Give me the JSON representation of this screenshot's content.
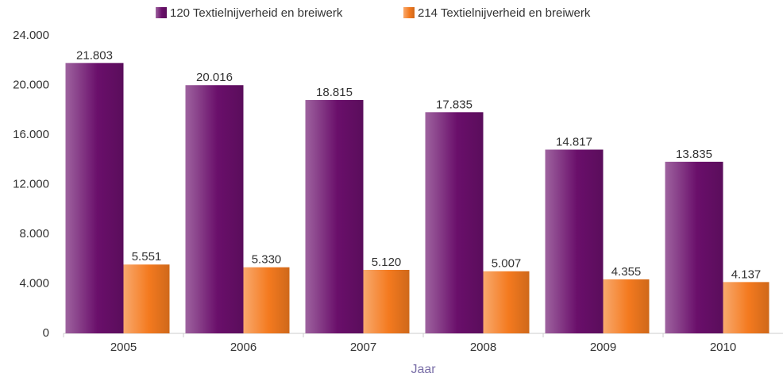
{
  "chart_data": {
    "type": "bar",
    "x_label": "Jaar",
    "categories": [
      "2005",
      "2006",
      "2007",
      "2008",
      "2009",
      "2010"
    ],
    "series": [
      {
        "name": "120 Textielnijverheid en breiwerk",
        "color": "#6a0f6b",
        "values": [
          21803,
          20016,
          18815,
          17835,
          14817,
          13835
        ],
        "value_labels": [
          "21.803",
          "20.016",
          "18.815",
          "17.835",
          "14.817",
          "13.835"
        ]
      },
      {
        "name": "214 Textielnijverheid en breiwerk",
        "color": "#f47a1f",
        "values": [
          5551,
          5330,
          5120,
          5007,
          4355,
          4137
        ],
        "value_labels": [
          "5.551",
          "5.330",
          "5.120",
          "5.007",
          "4.355",
          "4.137"
        ]
      }
    ],
    "ylim": [
      0,
      24000
    ],
    "yticks": [
      0,
      {
        "value": 4000,
        "label": "4.000"
      },
      {
        "value": 8000,
        "label": "8.000"
      },
      {
        "value": 12000,
        "label": "12.000"
      },
      {
        "value": 16000,
        "label": "16.000"
      },
      {
        "value": 20000,
        "label": "20.000"
      },
      {
        "value": 24000,
        "label": "24.000"
      }
    ],
    "grid": false,
    "legend": "top"
  }
}
